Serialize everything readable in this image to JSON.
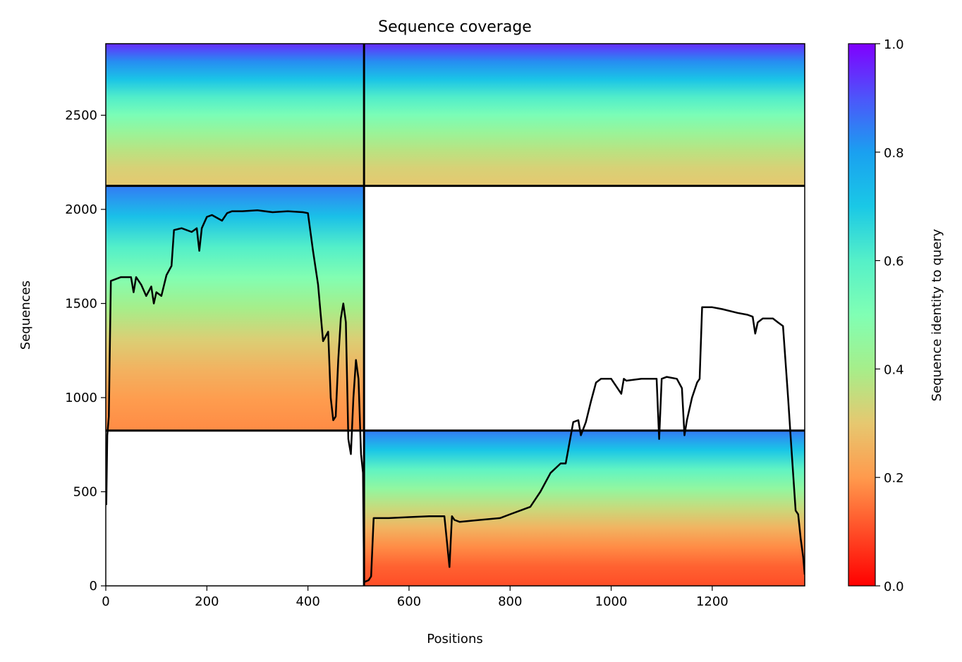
{
  "chart_data": {
    "type": "heatmap",
    "title": "Sequence coverage",
    "xlabel": "Positions",
    "ylabel": "Sequences",
    "xlim": [
      0,
      1383
    ],
    "ylim": [
      0,
      2880
    ],
    "xticks": [
      0,
      200,
      400,
      600,
      800,
      1000,
      1200
    ],
    "yticks": [
      0,
      500,
      1000,
      1500,
      2000,
      2500
    ],
    "colorbar": {
      "label": "Sequence identity to query",
      "range": [
        0,
        1
      ],
      "ticks": [
        0.0,
        0.2,
        0.4,
        0.6,
        0.8,
        1.0
      ],
      "colormap": "rainbow_r"
    },
    "segment_boundaries": {
      "x": [
        511
      ],
      "y": [
        825,
        2125
      ]
    },
    "blocks": [
      {
        "x": [
          0,
          511
        ],
        "y": [
          825,
          2125
        ],
        "identity_bottom": 0.18,
        "identity_top": 0.85
      },
      {
        "x": [
          0,
          511
        ],
        "y": [
          2125,
          2880
        ],
        "identity_bottom": 0.3,
        "identity_top": 0.95
      },
      {
        "x": [
          511,
          1383
        ],
        "y": [
          0,
          825
        ],
        "identity_bottom": 0.1,
        "identity_top": 0.85
      },
      {
        "x": [
          511,
          1383
        ],
        "y": [
          2125,
          2880
        ],
        "identity_bottom": 0.3,
        "identity_top": 0.95
      }
    ],
    "series": [
      {
        "type": "line",
        "color": "#000000",
        "x": [
          1,
          3,
          6,
          10,
          30,
          50,
          55,
          60,
          70,
          80,
          90,
          95,
          100,
          110,
          120,
          130,
          135,
          150,
          170,
          180,
          185,
          190,
          200,
          210,
          230,
          240,
          250,
          270,
          300,
          330,
          360,
          390,
          400,
          410,
          420,
          425,
          430,
          440,
          445,
          450,
          455,
          460,
          465,
          470,
          475,
          480,
          485,
          490,
          495,
          500,
          505,
          509,
          511,
          520,
          525,
          530,
          535,
          560,
          600,
          640,
          670,
          680,
          685,
          690,
          700,
          720,
          740,
          780,
          800,
          820,
          840,
          860,
          880,
          900,
          910,
          925,
          935,
          940,
          950,
          960,
          970,
          980,
          1000,
          1020,
          1025,
          1030,
          1060,
          1080,
          1090,
          1095,
          1100,
          1110,
          1130,
          1140,
          1145,
          1150,
          1160,
          1170,
          1175,
          1180,
          1200,
          1220,
          1250,
          1270,
          1280,
          1285,
          1290,
          1300,
          1320,
          1330,
          1340,
          1350,
          1355,
          1360,
          1365,
          1370,
          1375,
          1380,
          1383
        ],
        "y": [
          430,
          800,
          900,
          1620,
          1640,
          1640,
          1560,
          1640,
          1600,
          1540,
          1590,
          1500,
          1560,
          1540,
          1650,
          1700,
          1890,
          1900,
          1880,
          1900,
          1780,
          1900,
          1960,
          1970,
          1940,
          1980,
          1990,
          1990,
          1995,
          1985,
          1990,
          1985,
          1980,
          1780,
          1600,
          1450,
          1300,
          1350,
          1000,
          880,
          900,
          1200,
          1420,
          1500,
          1400,
          780,
          700,
          1000,
          1200,
          1100,
          700,
          600,
          20,
          30,
          50,
          360,
          360,
          360,
          365,
          370,
          370,
          100,
          370,
          350,
          340,
          345,
          350,
          360,
          380,
          400,
          420,
          500,
          600,
          650,
          650,
          870,
          880,
          800,
          870,
          980,
          1080,
          1100,
          1100,
          1020,
          1100,
          1090,
          1100,
          1100,
          1100,
          780,
          1100,
          1110,
          1100,
          1050,
          800,
          880,
          1000,
          1080,
          1100,
          1480,
          1480,
          1470,
          1450,
          1440,
          1430,
          1340,
          1400,
          1420,
          1420,
          1400,
          1380,
          1000,
          800,
          600,
          400,
          380,
          250,
          150,
          60
        ]
      }
    ]
  }
}
